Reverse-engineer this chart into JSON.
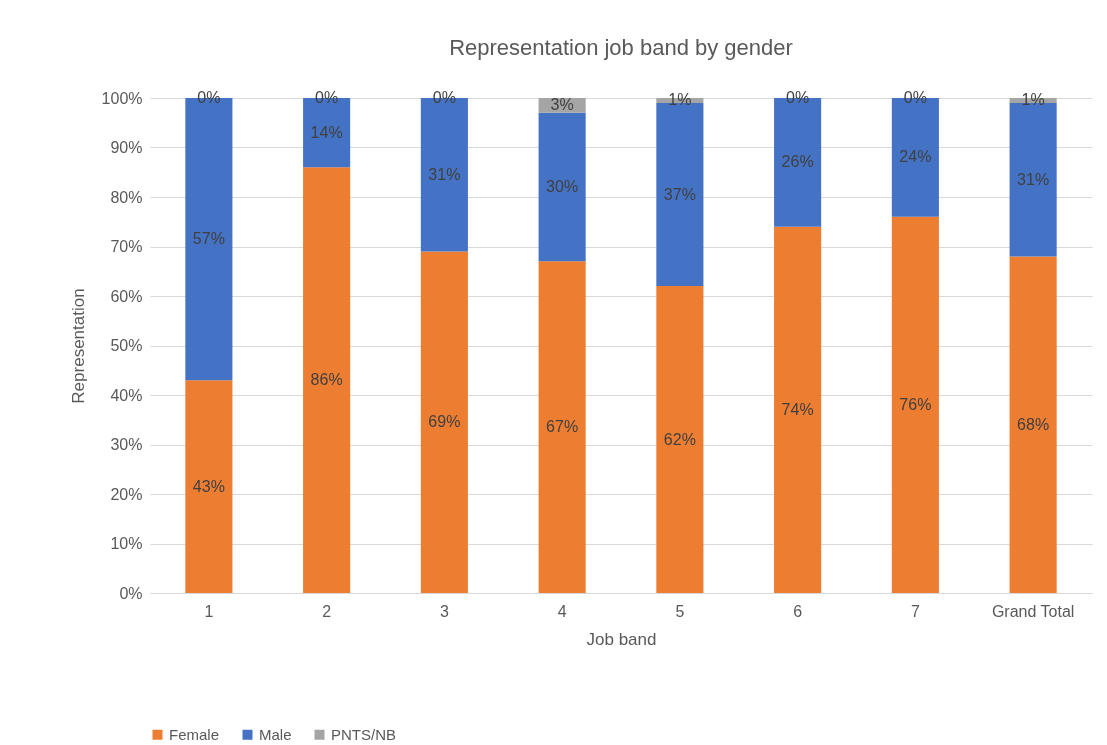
{
  "chart_data": {
    "type": "bar",
    "title": "Representation job band by gender",
    "xlabel": "Job band",
    "ylabel": "Representation",
    "stacked": true,
    "categories": [
      "1",
      "2",
      "3",
      "4",
      "5",
      "6",
      "7",
      "Grand Total"
    ],
    "series": [
      {
        "name": "Female",
        "color": "#ed7d31",
        "values": [
          43,
          86,
          69,
          67,
          62,
          74,
          76,
          68
        ],
        "value_labels": [
          "43%",
          "86%",
          "69%",
          "67%",
          "62%",
          "74%",
          "76%",
          "68%"
        ]
      },
      {
        "name": "Male",
        "color": "#4472c4",
        "values": [
          57,
          14,
          31,
          30,
          37,
          26,
          24,
          31
        ],
        "value_labels": [
          "57%",
          "14%",
          "31%",
          "30%",
          "37%",
          "26%",
          "24%",
          "31%"
        ]
      },
      {
        "name": "PNTS/NB",
        "color": "#a5a5a5",
        "values": [
          0,
          0,
          0,
          3,
          1,
          0,
          0,
          1
        ],
        "value_labels": [
          "0%",
          "0%",
          "0%",
          "3%",
          "1%",
          "0%",
          "0%",
          "1%"
        ]
      }
    ],
    "ylim": [
      0,
      100
    ],
    "yticks": [
      {
        "value": 0,
        "label": "0%"
      },
      {
        "value": 10,
        "label": "10%"
      },
      {
        "value": 20,
        "label": "20%"
      },
      {
        "value": 30,
        "label": "30%"
      },
      {
        "value": 40,
        "label": "40%"
      },
      {
        "value": 50,
        "label": "50%"
      },
      {
        "value": 60,
        "label": "60%"
      },
      {
        "value": 70,
        "label": "70%"
      },
      {
        "value": 80,
        "label": "80%"
      },
      {
        "value": 90,
        "label": "90%"
      },
      {
        "value": 100,
        "label": "100%"
      }
    ],
    "grid": "y",
    "legend": "bottom"
  }
}
